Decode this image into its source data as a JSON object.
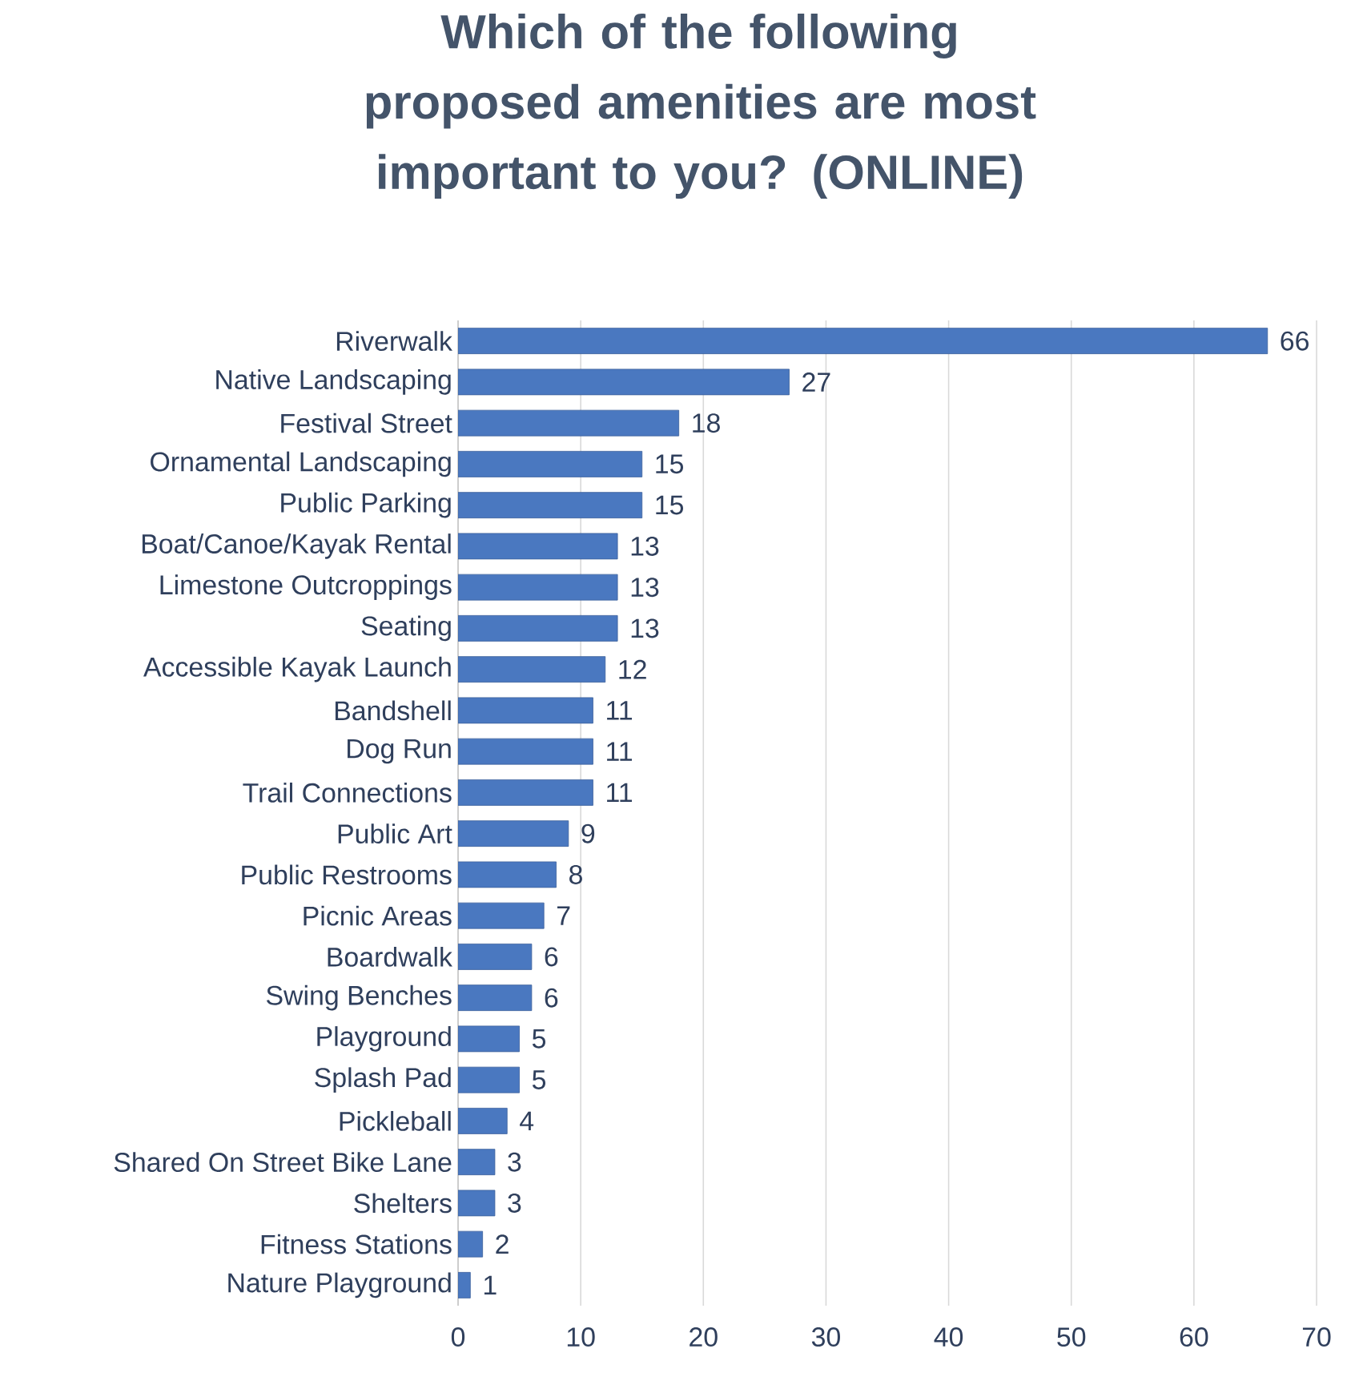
{
  "chart_data": {
    "type": "bar",
    "orientation": "horizontal",
    "title": "Which of the following proposed amenities are most important to you? (ONLINE)",
    "categories": [
      "Riverwalk",
      "Native Landscaping",
      "Festival Street",
      "Ornamental Landscaping",
      "Public Parking",
      "Boat/Canoe/Kayak Rental",
      "Limestone Outcroppings",
      "Seating",
      "Accessible Kayak Launch",
      "Bandshell",
      "Dog Run",
      "Trail Connections",
      "Public Art",
      "Public Restrooms",
      "Picnic Areas",
      "Boardwalk",
      "Swing Benches",
      "Playground",
      "Splash Pad",
      "Pickleball",
      "Shared On Street Bike Lane",
      "Shelters",
      "Fitness Stations",
      "Nature Playground"
    ],
    "values": [
      66,
      27,
      18,
      15,
      15,
      13,
      13,
      13,
      12,
      11,
      11,
      11,
      9,
      8,
      7,
      6,
      6,
      5,
      5,
      4,
      3,
      3,
      2,
      1
    ],
    "color": "#4a78c0",
    "xlim": [
      0,
      70
    ],
    "xticks": [
      0,
      10,
      20,
      30,
      40,
      50,
      60,
      70
    ],
    "grid": "x",
    "data_labels": true
  }
}
